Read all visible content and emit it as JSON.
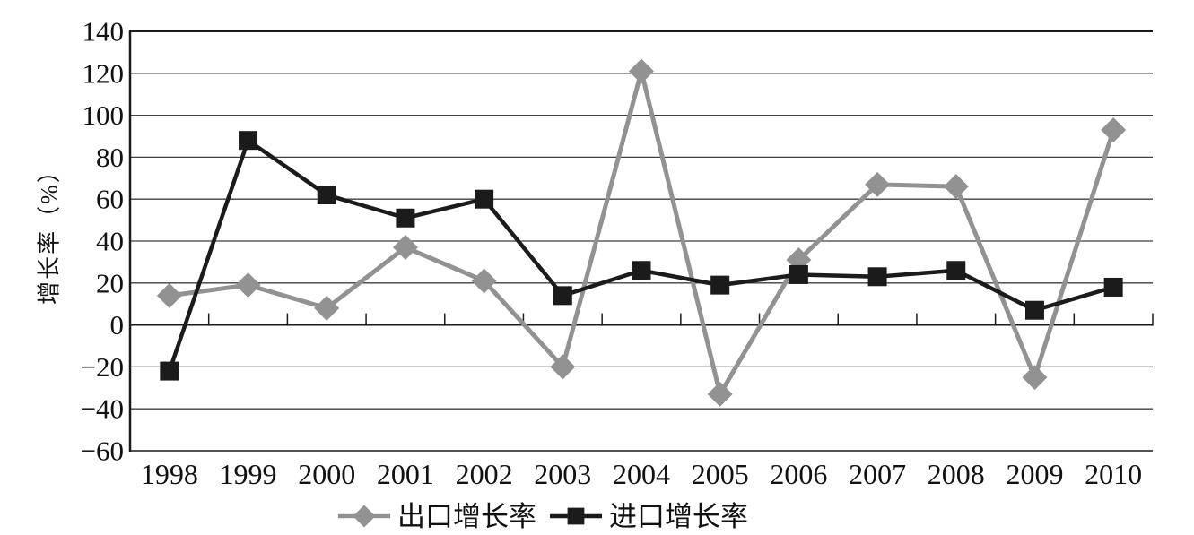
{
  "chart_data": {
    "type": "line",
    "title": "",
    "xlabel": "",
    "ylabel": "增长率（%）",
    "x": [
      "1998",
      "1999",
      "2000",
      "2001",
      "2002",
      "2003",
      "2004",
      "2005",
      "2006",
      "2007",
      "2008",
      "2009",
      "2010"
    ],
    "series": [
      {
        "name": "出口增长率",
        "marker": "diamond",
        "color": "#929292",
        "values": [
          14,
          19,
          8,
          37,
          21,
          -20,
          121,
          -33,
          31,
          67,
          66,
          -25,
          93
        ]
      },
      {
        "name": "进口增长率",
        "marker": "square",
        "color": "#1b1b1b",
        "values": [
          -22,
          88,
          62,
          51,
          60,
          14,
          26,
          19,
          24,
          23,
          26,
          7,
          18
        ]
      }
    ],
    "ylim": [
      -60,
      140
    ],
    "ytick_step": 20,
    "grid": true,
    "legend_position": "bottom"
  },
  "colors": {
    "background": "#ffffff",
    "gridline": "#3f3f3f",
    "axis": "#1a1a1a",
    "text": "#111111"
  }
}
